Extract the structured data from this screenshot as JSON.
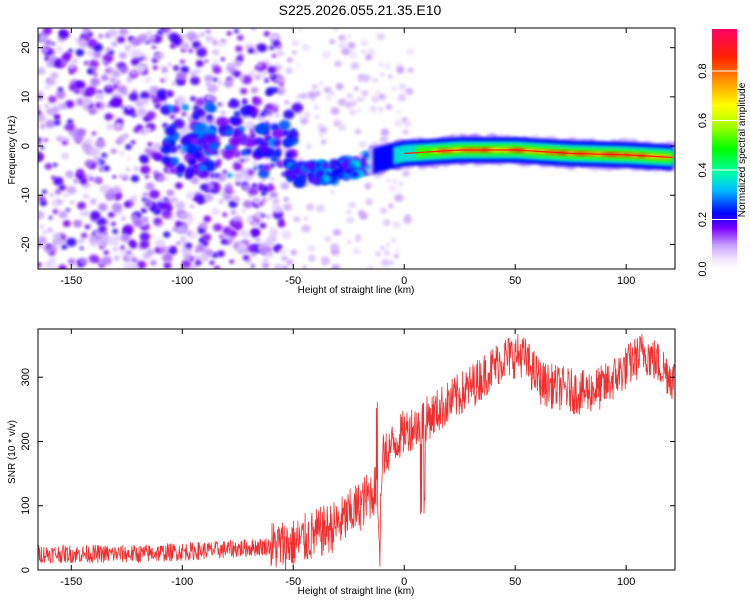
{
  "title": "S225.2026.055.21.35.E10",
  "chart_data": [
    {
      "type": "heatmap",
      "name": "spectrogram",
      "xlabel": "Height of straight line (km)",
      "ylabel": "Frequency (Hz)",
      "xlim": [
        -165,
        122
      ],
      "ylim": [
        -25,
        24
      ],
      "xticks": [
        -150,
        -100,
        -50,
        0,
        50,
        100
      ],
      "yticks": [
        -20,
        -10,
        0,
        10,
        20
      ],
      "colorbar": {
        "label": "Normalized spectral amplitude",
        "range": [
          0.0,
          0.97
        ],
        "ticks": [
          0.0,
          0.2,
          0.4,
          0.6,
          0.8
        ]
      },
      "ridge": [
        {
          "x": -45,
          "f": -6.0
        },
        {
          "x": -30,
          "f": -5.0
        },
        {
          "x": -20,
          "f": -4.0
        },
        {
          "x": -10,
          "f": -2.5
        },
        {
          "x": 0,
          "f": -1.5
        },
        {
          "x": 25,
          "f": -0.8
        },
        {
          "x": 50,
          "f": -0.8
        },
        {
          "x": 75,
          "f": -1.5
        },
        {
          "x": 100,
          "f": -1.8
        },
        {
          "x": 120,
          "f": -2.3
        }
      ]
    },
    {
      "type": "line",
      "name": "snr",
      "xlabel": "Height of straight line (km)",
      "ylabel": "SNR (10 * v/v)",
      "xlim": [
        -165,
        122
      ],
      "ylim": [
        0,
        375
      ],
      "xticks": [
        -150,
        -100,
        -50,
        0,
        50,
        100
      ],
      "yticks": [
        0,
        100,
        200,
        300
      ],
      "color": "#f03030",
      "trend": [
        {
          "x": -165,
          "y": 25
        },
        {
          "x": -120,
          "y": 25
        },
        {
          "x": -80,
          "y": 32
        },
        {
          "x": -50,
          "y": 40
        },
        {
          "x": -30,
          "y": 70
        },
        {
          "x": -20,
          "y": 100
        },
        {
          "x": -12,
          "y": 130
        },
        {
          "x": -11,
          "y": 35
        },
        {
          "x": -10,
          "y": 175
        },
        {
          "x": 0,
          "y": 215
        },
        {
          "x": 10,
          "y": 235
        },
        {
          "x": 30,
          "y": 285
        },
        {
          "x": 45,
          "y": 330
        },
        {
          "x": 53,
          "y": 335
        },
        {
          "x": 62,
          "y": 290
        },
        {
          "x": 80,
          "y": 275
        },
        {
          "x": 90,
          "y": 285
        },
        {
          "x": 100,
          "y": 315
        },
        {
          "x": 108,
          "y": 340
        },
        {
          "x": 115,
          "y": 320
        },
        {
          "x": 122,
          "y": 295
        }
      ]
    }
  ]
}
